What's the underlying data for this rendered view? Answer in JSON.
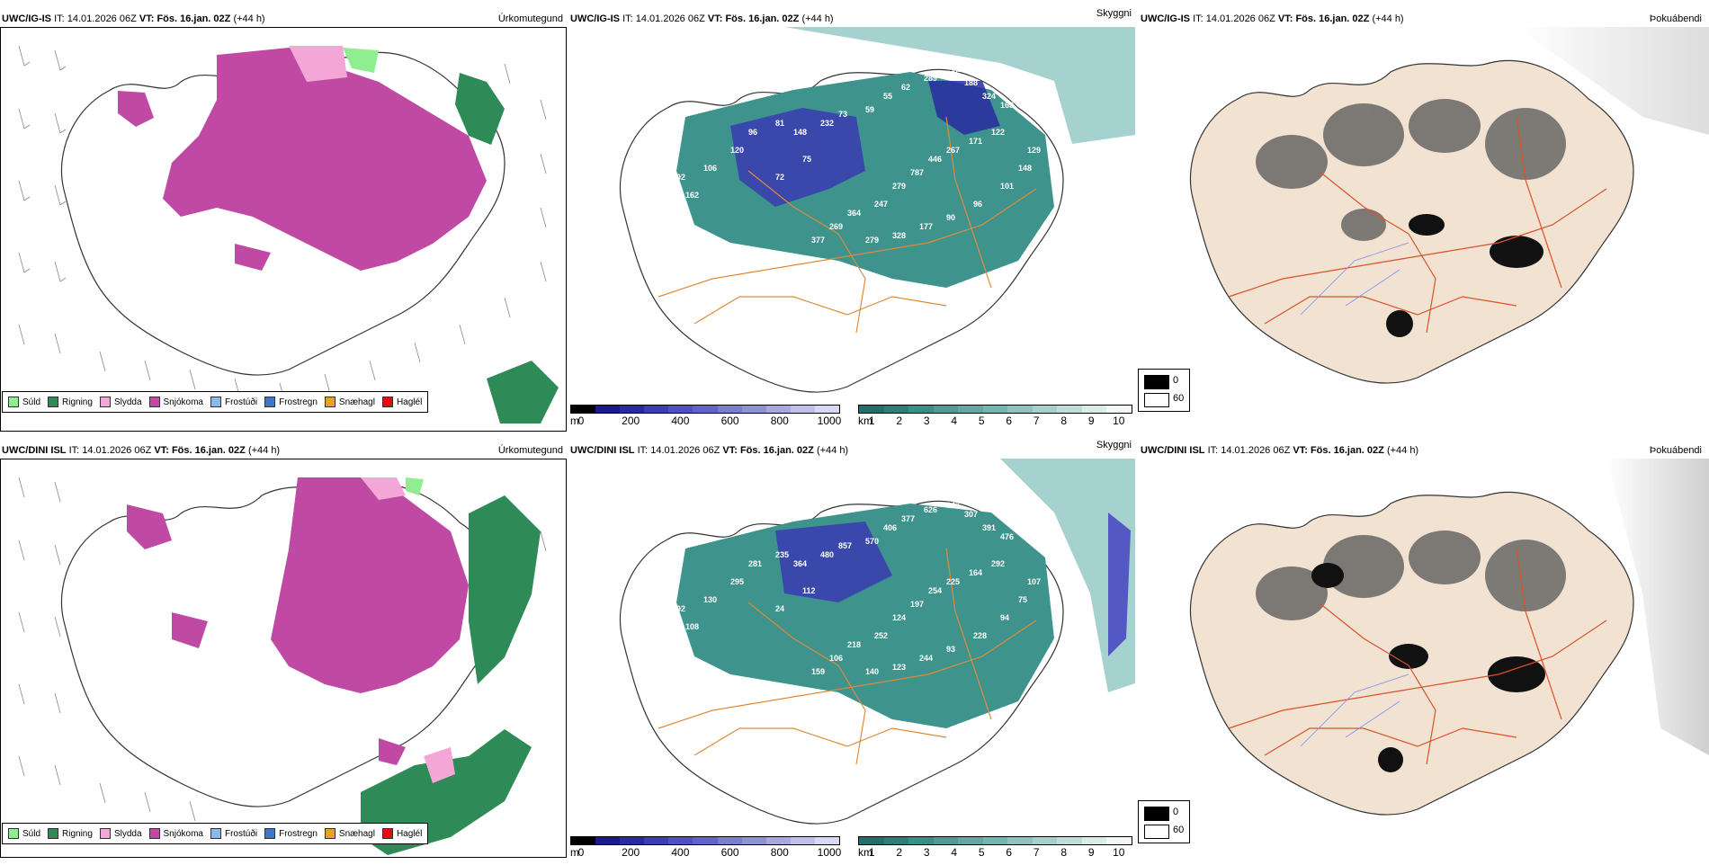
{
  "rows": [
    {
      "model": "UWC/IG-IS",
      "it_label": "IT:",
      "it_value": "14.01.2026 06Z",
      "vt_label": "VT:",
      "vt_value": "Fös. 16.jan. 02Z",
      "lead": "(+44 h)"
    },
    {
      "model": "UWC/DINI ISL",
      "it_label": "IT:",
      "it_value": "14.01.2026 06Z",
      "vt_label": "VT:",
      "vt_value": "Fös. 16.jan. 02Z",
      "lead": "(+44 h)"
    }
  ],
  "panels": {
    "precip_type": {
      "title": "Úrkomutegund",
      "legend": [
        {
          "label": "Súld",
          "color": "#90ee90"
        },
        {
          "label": "Rigning",
          "color": "#2e8b57"
        },
        {
          "label": "Slydda",
          "color": "#f4a6d7"
        },
        {
          "label": "Snjókoma",
          "color": "#c04aa3"
        },
        {
          "label": "Frostúði",
          "color": "#8db8ec"
        },
        {
          "label": "Frostregn",
          "color": "#3a78c9"
        },
        {
          "label": "Snæhagl",
          "color": "#f0a020"
        },
        {
          "label": "Haglél",
          "color": "#e01010"
        }
      ]
    },
    "cloud": {
      "title": "Skyggni",
      "base_unit": "m",
      "base_ticks": [
        "0",
        "200",
        "400",
        "600",
        "800",
        "1000"
      ],
      "base_colors": [
        "#000000",
        "#1a1a8a",
        "#2a2aa0",
        "#3c3cb4",
        "#5050c0",
        "#6464c8",
        "#7c7cd0",
        "#9090d8",
        "#a8a8e0",
        "#c0c0ea",
        "#d8d8f4"
      ],
      "vis_unit": "km",
      "vis_ticks": [
        "1",
        "2",
        "3",
        "4",
        "5",
        "6",
        "7",
        "8",
        "9",
        "10"
      ],
      "vis_colors": [
        "#1f6f6a",
        "#2b7f79",
        "#388f88",
        "#4a9c95",
        "#5ea9a2",
        "#74b6b0",
        "#8cc3be",
        "#a5d0cc",
        "#bfdeda",
        "#d9ece9",
        "#f2f8f7"
      ],
      "top_labels": [
        [
          "92",
          "162",
          "106",
          "120",
          "96",
          "81",
          "148",
          "232",
          "73",
          "59",
          "55",
          "62",
          "289",
          "236",
          "188",
          "324",
          "163",
          "122",
          "171",
          "267",
          "446",
          "787",
          "279",
          "247",
          "364",
          "269",
          "377",
          "279",
          "328",
          "177",
          "90",
          "96",
          "101",
          "148",
          "129",
          "75",
          "72"
        ],
        [
          "92",
          "108",
          "130",
          "295",
          "281",
          "235",
          "364",
          "480",
          "857",
          "570",
          "406",
          "377",
          "626",
          "347",
          "307",
          "391",
          "476",
          "292",
          "164",
          "225",
          "254",
          "197",
          "124",
          "252",
          "218",
          "106",
          "159",
          "140",
          "123",
          "244",
          "93",
          "228",
          "94",
          "75",
          "107",
          "112",
          "24"
        ]
      ]
    },
    "fog": {
      "title": "Þokuábendi",
      "legend": [
        {
          "label": "0",
          "color": "#000000"
        },
        {
          "label": "60",
          "color": "#ffffff"
        }
      ]
    }
  }
}
